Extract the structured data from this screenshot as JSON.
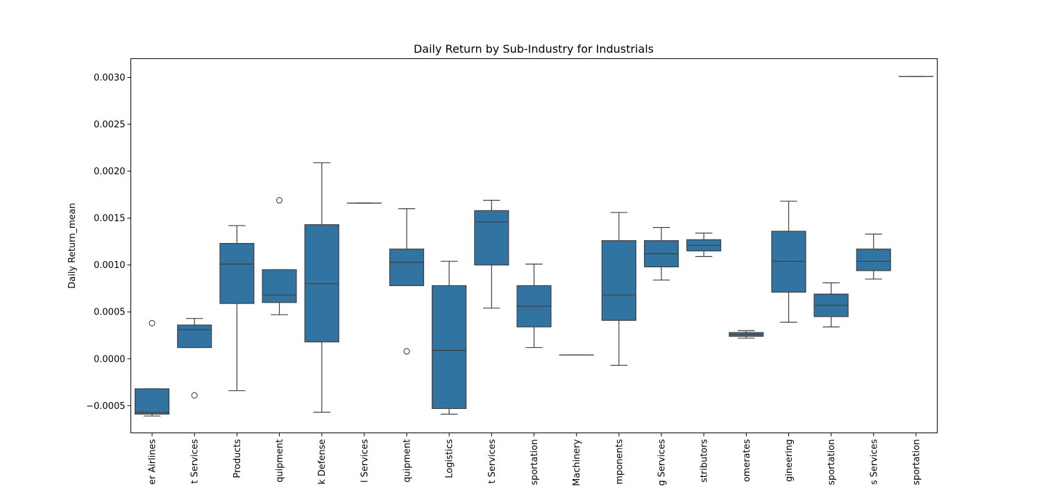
{
  "chart_data": {
    "type": "box",
    "title": "Daily Return by Sub-Industry for Industrials",
    "xlabel": "",
    "ylabel": "Daily Return_mean",
    "ylim": [
      -0.00079,
      0.0032
    ],
    "yticks": [
      -0.0005,
      0.0,
      0.0005,
      0.001,
      0.0015,
      0.002,
      0.0025,
      0.003
    ],
    "ytick_labels": [
      "−0.0005",
      "0.0000",
      "0.0005",
      "0.0010",
      "0.0015",
      "0.0020",
      "0.0025",
      "0.0030"
    ],
    "grid": false,
    "legend": "none",
    "box_color": "#3274a1",
    "line_color": "#3f3f3f",
    "categories": [
      "er Airlines",
      "t Services",
      "Products",
      "quipment",
      "k Defense",
      "l Services",
      "quipment",
      "Logistics",
      "t Services",
      "sportation",
      "Machinery",
      "mponents",
      "g Services",
      "stributors",
      "omerates",
      "gineering",
      "sportation",
      "s Services",
      "sportation"
    ],
    "boxes": [
      {
        "whislo": -0.00061,
        "q1": -0.00059,
        "med": -0.00057,
        "q3": -0.00032,
        "whishi": -0.00032,
        "fliers": [
          0.00038
        ]
      },
      {
        "whislo": 0.00012,
        "q1": 0.00012,
        "med": 0.00031,
        "q3": 0.00036,
        "whishi": 0.00043,
        "fliers": [
          -0.00039
        ]
      },
      {
        "whislo": -0.00034,
        "q1": 0.00059,
        "med": 0.00101,
        "q3": 0.00123,
        "whishi": 0.00142,
        "fliers": []
      },
      {
        "whislo": 0.00047,
        "q1": 0.0006,
        "med": 0.00068,
        "q3": 0.00095,
        "whishi": 0.00095,
        "fliers": [
          0.00169
        ]
      },
      {
        "whislo": -0.00057,
        "q1": 0.00018,
        "med": 0.0008,
        "q3": 0.00143,
        "whishi": 0.00209,
        "fliers": []
      },
      {
        "whislo": 0.00166,
        "q1": 0.00166,
        "med": 0.00166,
        "q3": 0.00166,
        "whishi": 0.00166,
        "fliers": []
      },
      {
        "whislo": 0.00078,
        "q1": 0.00078,
        "med": 0.00103,
        "q3": 0.00117,
        "whishi": 0.0016,
        "fliers": [
          8e-05
        ]
      },
      {
        "whislo": -0.00059,
        "q1": -0.00053,
        "med": 9e-05,
        "q3": 0.00078,
        "whishi": 0.00104,
        "fliers": []
      },
      {
        "whislo": 0.00054,
        "q1": 0.001,
        "med": 0.00146,
        "q3": 0.00158,
        "whishi": 0.00169,
        "fliers": []
      },
      {
        "whislo": 0.00012,
        "q1": 0.00034,
        "med": 0.00056,
        "q3": 0.00078,
        "whishi": 0.00101,
        "fliers": []
      },
      {
        "whislo": 4e-05,
        "q1": 4e-05,
        "med": 4e-05,
        "q3": 4e-05,
        "whishi": 4e-05,
        "fliers": []
      },
      {
        "whislo": -7e-05,
        "q1": 0.00041,
        "med": 0.00068,
        "q3": 0.00126,
        "whishi": 0.00156,
        "fliers": []
      },
      {
        "whislo": 0.00084,
        "q1": 0.00098,
        "med": 0.00112,
        "q3": 0.00126,
        "whishi": 0.0014,
        "fliers": []
      },
      {
        "whislo": 0.00109,
        "q1": 0.00115,
        "med": 0.00121,
        "q3": 0.00127,
        "whishi": 0.00134,
        "fliers": []
      },
      {
        "whislo": 0.00022,
        "q1": 0.00024,
        "med": 0.00026,
        "q3": 0.00028,
        "whishi": 0.0003,
        "fliers": []
      },
      {
        "whislo": 0.00039,
        "q1": 0.00071,
        "med": 0.00104,
        "q3": 0.00136,
        "whishi": 0.00168,
        "fliers": []
      },
      {
        "whislo": 0.00034,
        "q1": 0.00045,
        "med": 0.00057,
        "q3": 0.00069,
        "whishi": 0.00081,
        "fliers": []
      },
      {
        "whislo": 0.00085,
        "q1": 0.00094,
        "med": 0.00104,
        "q3": 0.00117,
        "whishi": 0.00133,
        "fliers": []
      },
      {
        "whislo": 0.00301,
        "q1": 0.00301,
        "med": 0.00301,
        "q3": 0.00301,
        "whishi": 0.00301,
        "fliers": []
      }
    ]
  }
}
